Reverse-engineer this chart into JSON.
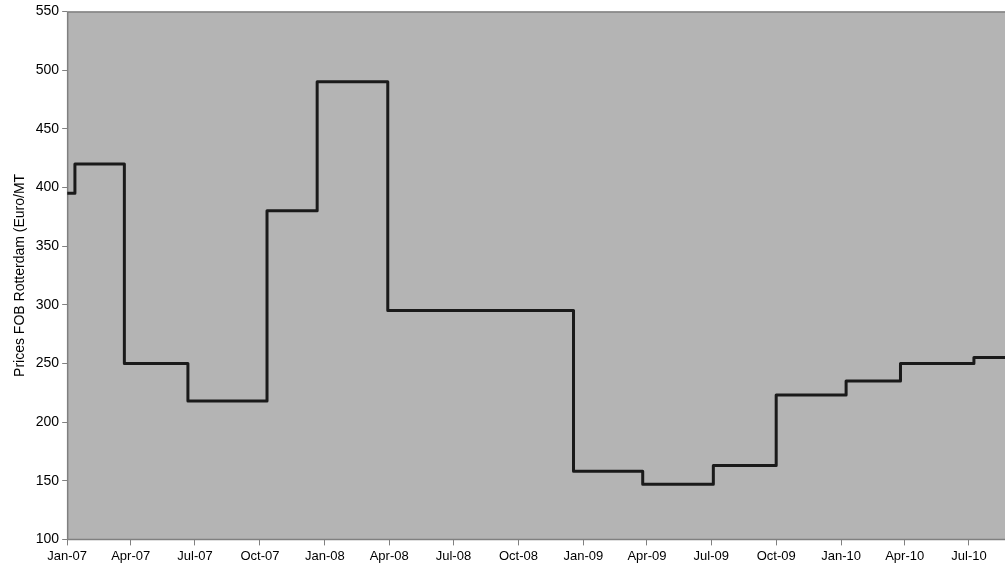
{
  "chart_data": {
    "type": "step",
    "ylabel": "Prices FOB Rotterdam (Euro/MT",
    "x": [
      "2007-01-01",
      "2007-01-12",
      "2007-03-23",
      "2007-06-21",
      "2007-10-11",
      "2007-12-21",
      "2008-03-30",
      "2008-12-18",
      "2009-03-26",
      "2009-07-04",
      "2009-10-01",
      "2010-01-08",
      "2010-03-26",
      "2010-07-08",
      "2010-08-21"
    ],
    "series": [
      {
        "color": "#1a1a1a",
        "values": [
          395,
          420,
          250,
          218,
          380,
          490,
          295,
          158,
          147,
          163,
          223,
          235,
          250,
          255,
          255
        ]
      }
    ],
    "xlim": [
      "2007-01-01",
      "2010-08-21"
    ],
    "xticks": [
      {
        "value": "2007-01-01",
        "label": "Jan-07"
      },
      {
        "value": "2007-04-01",
        "label": "Apr-07"
      },
      {
        "value": "2007-07-01",
        "label": "Jul-07"
      },
      {
        "value": "2007-10-01",
        "label": "Oct-07"
      },
      {
        "value": "2008-01-01",
        "label": "Jan-08"
      },
      {
        "value": "2008-04-01",
        "label": "Apr-08"
      },
      {
        "value": "2008-07-01",
        "label": "Jul-08"
      },
      {
        "value": "2008-10-01",
        "label": "Oct-08"
      },
      {
        "value": "2009-01-01",
        "label": "Jan-09"
      },
      {
        "value": "2009-04-01",
        "label": "Apr-09"
      },
      {
        "value": "2009-07-01",
        "label": "Jul-09"
      },
      {
        "value": "2009-10-01",
        "label": "Oct-09"
      },
      {
        "value": "2010-01-01",
        "label": "Jan-10"
      },
      {
        "value": "2010-04-01",
        "label": "Apr-10"
      },
      {
        "value": "2010-07-01",
        "label": "Jul-10"
      }
    ],
    "ylim": [
      100,
      550
    ],
    "yticks": [
      100,
      150,
      200,
      250,
      300,
      350,
      400,
      450,
      500,
      550
    ],
    "grid": false,
    "legend": false,
    "marker": "none",
    "line_style": "solid"
  }
}
